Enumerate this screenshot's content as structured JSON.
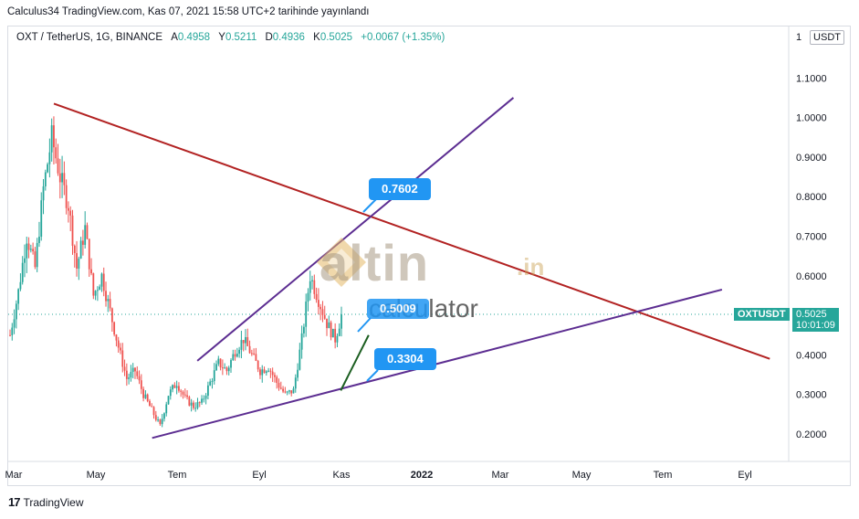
{
  "header": {
    "publish_line": "Calculus34 TradingView.com, Kas 07, 2021 15:58 UTC+2 tarihinde yayınlandı"
  },
  "legend": {
    "symbol": "OXT / TetherUS, 1G, BINANCE",
    "o_label": "A",
    "o_value": "0.4958",
    "h_label": "Y",
    "h_value": "0.5211",
    "l_label": "D",
    "l_value": "0.4936",
    "c_label": "K",
    "c_value": "0.5025",
    "change": "+0.0067 (+1.35%)"
  },
  "currency_button": "USDT",
  "price_scale_top_digit": "1",
  "last_price": {
    "symbol": "OXTUSDT",
    "price": "0.5025",
    "countdown": "10:01:09"
  },
  "annotations": {
    "upper_callout": "0.7602",
    "lower_callout": "0.3304",
    "middle_callout": "0.5009"
  },
  "watermark": {
    "brand": "altin",
    "tld": ".in",
    "sub": "calculator"
  },
  "footer": {
    "brand": "TradingView",
    "logo_mark": "17"
  },
  "colors": {
    "up": "#26a69a",
    "down": "#ef5350",
    "resistance": "#b22222",
    "channel": "#5c2d91",
    "support_short": "#1b5e20",
    "callout": "#2196f3"
  },
  "chart_data": {
    "type": "candlestick",
    "title": "OXT / TetherUS, 1G, BINANCE",
    "ylim": [
      0.15,
      1.2
    ],
    "y_ticks": [
      0.2,
      0.3,
      0.4,
      0.5,
      0.6,
      0.7,
      0.8,
      0.9,
      1.0,
      1.1
    ],
    "y_tick_labels": [
      "0.2000",
      "0.3000",
      "0.4000",
      "0.5000",
      "0.6000",
      "0.7000",
      "0.8000",
      "0.9000",
      "1.0000",
      "1.1000"
    ],
    "x_tick_labels": [
      "Mar",
      "May",
      "Tem",
      "Eyl",
      "Kas",
      "2022",
      "Mar",
      "May",
      "Tem",
      "Eyl"
    ],
    "last_close": 0.5025,
    "close_path": [
      [
        0,
        0.45
      ],
      [
        4,
        0.56
      ],
      [
        8,
        0.7
      ],
      [
        12,
        0.62
      ],
      [
        16,
        0.82
      ],
      [
        20,
        0.95
      ],
      [
        24,
        0.85
      ],
      [
        28,
        0.78
      ],
      [
        32,
        0.62
      ],
      [
        36,
        0.72
      ],
      [
        40,
        0.55
      ],
      [
        44,
        0.6
      ],
      [
        48,
        0.51
      ],
      [
        52,
        0.42
      ],
      [
        56,
        0.34
      ],
      [
        60,
        0.36
      ],
      [
        64,
        0.3
      ],
      [
        68,
        0.26
      ],
      [
        72,
        0.22
      ],
      [
        76,
        0.3
      ],
      [
        80,
        0.33
      ],
      [
        84,
        0.29
      ],
      [
        88,
        0.27
      ],
      [
        92,
        0.28
      ],
      [
        96,
        0.33
      ],
      [
        100,
        0.38
      ],
      [
        104,
        0.36
      ],
      [
        108,
        0.41
      ],
      [
        112,
        0.44
      ],
      [
        116,
        0.4
      ],
      [
        120,
        0.36
      ],
      [
        124,
        0.37
      ],
      [
        128,
        0.33
      ],
      [
        132,
        0.3
      ],
      [
        136,
        0.31
      ],
      [
        140,
        0.44
      ],
      [
        144,
        0.6
      ],
      [
        148,
        0.54
      ],
      [
        152,
        0.48
      ],
      [
        156,
        0.44
      ],
      [
        159,
        0.5
      ]
    ],
    "trendlines": [
      {
        "name": "resistance",
        "color": "#b22222",
        "from": [
          "2021-03-20",
          1.035
        ],
        "to": [
          "2022-09-10",
          0.39
        ]
      },
      {
        "name": "channel-upper",
        "color": "#5c2d91",
        "from": [
          "2021-07-06",
          0.385
        ],
        "to": [
          "2022-03-01",
          1.05
        ]
      },
      {
        "name": "channel-lower",
        "color": "#5c2d91",
        "from": [
          "2021-06-02",
          0.19
        ],
        "to": [
          "2022-08-05",
          0.565
        ]
      },
      {
        "name": "short-support",
        "color": "#1b5e20",
        "from": [
          "2021-10-22",
          0.31
        ],
        "to": [
          "2021-11-12",
          0.45
        ]
      }
    ]
  }
}
